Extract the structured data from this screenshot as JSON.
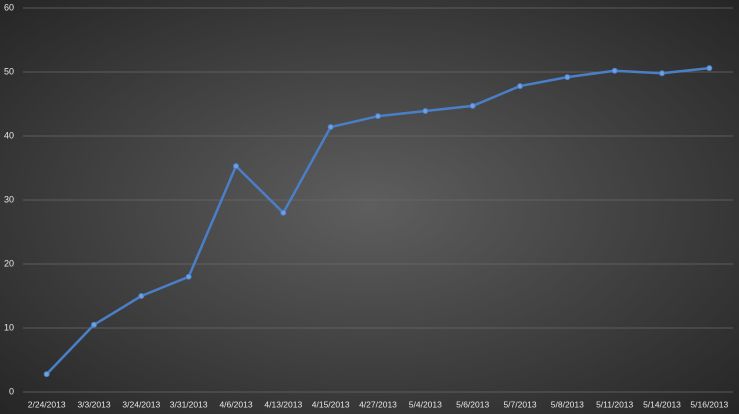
{
  "chart_data": {
    "type": "line",
    "categories": [
      "2/24/2013",
      "3/3/2013",
      "3/24/2013",
      "3/31/2013",
      "4/6/2013",
      "4/13/2013",
      "4/15/2013",
      "4/27/2013",
      "5/4/2013",
      "5/6/2013",
      "5/7/2013",
      "5/8/2013",
      "5/11/2013",
      "5/14/2013",
      "5/16/2013"
    ],
    "values": [
      2.8,
      10.5,
      15,
      18,
      35.3,
      28,
      41.4,
      43.1,
      43.9,
      44.7,
      47.8,
      49.2,
      50.2,
      49.8,
      50.6
    ],
    "color": "#4a7fc8",
    "ylim": [
      0,
      60
    ],
    "yticks": [
      0,
      10,
      20,
      30,
      40,
      50,
      60
    ],
    "grid": true
  }
}
